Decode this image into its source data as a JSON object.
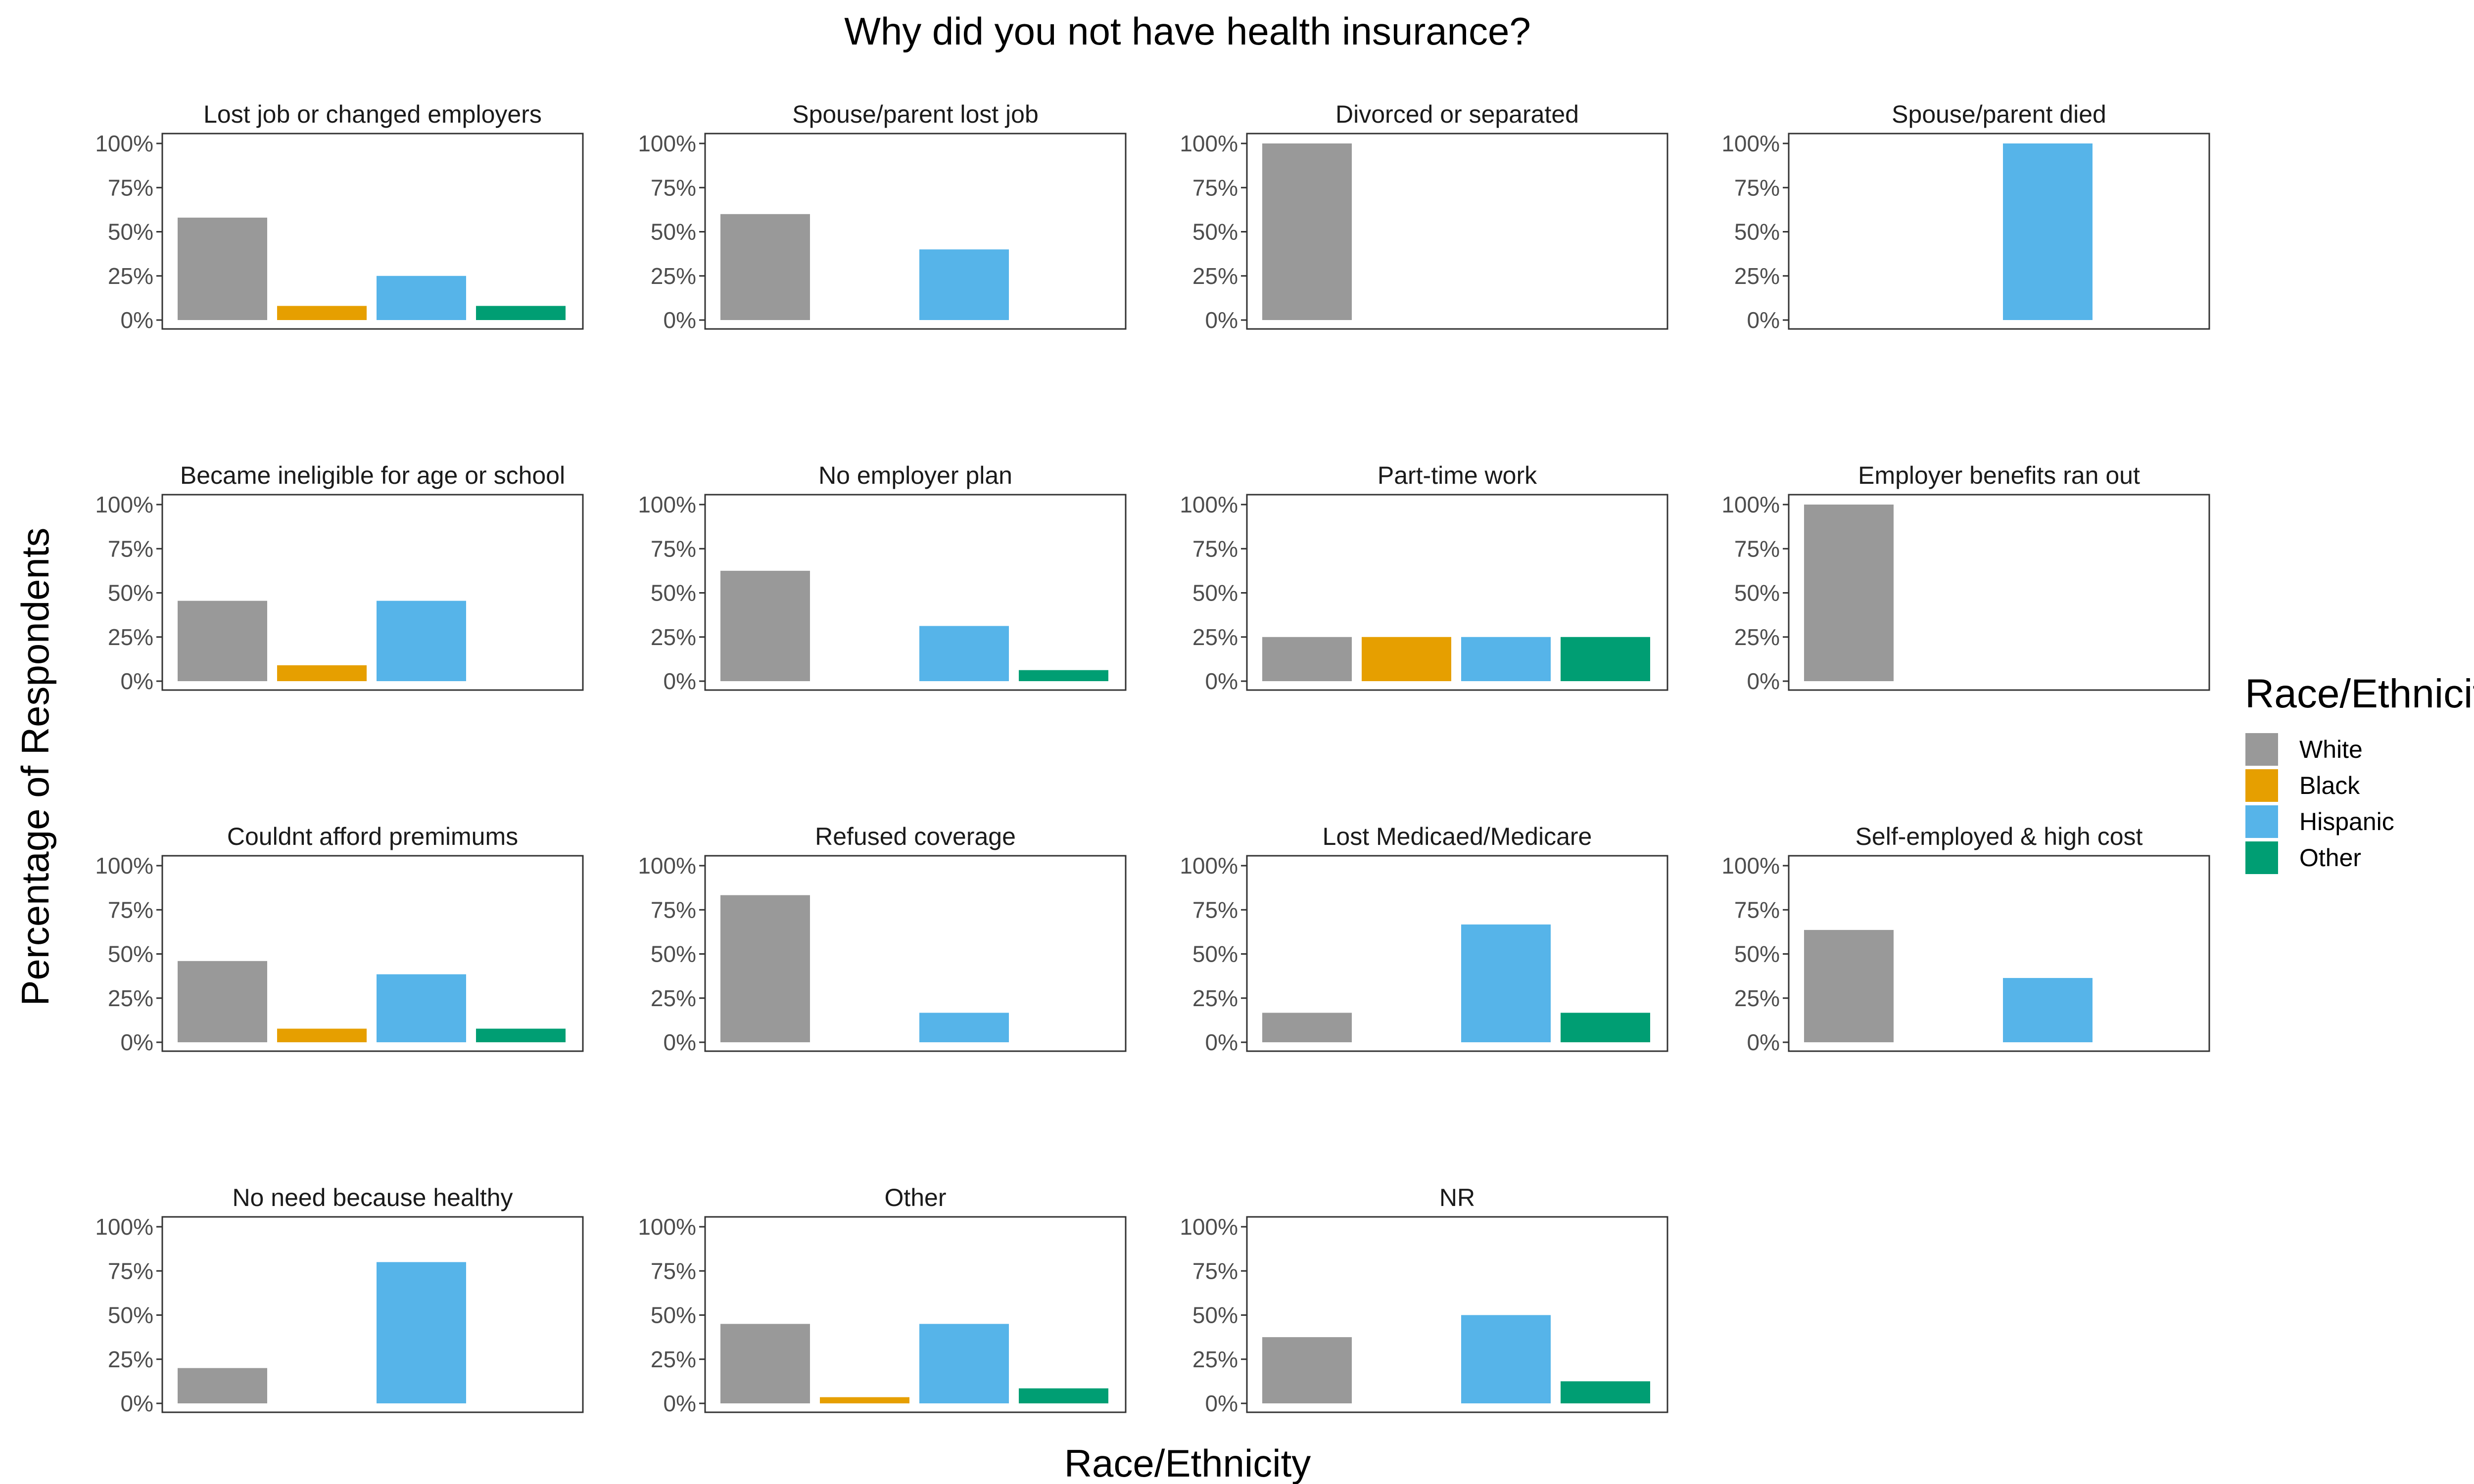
{
  "chart_data": {
    "type": "bar",
    "title": "Why did you not have health insurance?",
    "xlabel": "Race/Ethnicity",
    "ylabel": "Percentage of Respondents",
    "ylim": [
      0,
      1
    ],
    "yticks": [
      {
        "value": 0,
        "label": "0%"
      },
      {
        "value": 0.25,
        "label": "25%"
      },
      {
        "value": 0.5,
        "label": "50%"
      },
      {
        "value": 0.75,
        "label": "75%"
      },
      {
        "value": 1,
        "label": "100%"
      }
    ],
    "grid": false,
    "legend": {
      "title": "Race/Ethnicity",
      "position": "right",
      "entries": [
        {
          "name": "White",
          "color": "#999999"
        },
        {
          "name": "Black",
          "color": "#E69F00"
        },
        {
          "name": "Hispanic",
          "color": "#56B4E9"
        },
        {
          "name": "Other",
          "color": "#009E73"
        }
      ]
    },
    "categories": [
      "White",
      "Black",
      "Hispanic",
      "Other"
    ],
    "panels": [
      {
        "title": "Lost job or changed employers",
        "values": [
          0.58,
          0.08,
          0.25,
          0.08
        ]
      },
      {
        "title": "Spouse/parent lost job",
        "values": [
          0.6,
          0,
          0.4,
          0
        ]
      },
      {
        "title": "Divorced or separated",
        "values": [
          1.0,
          0,
          0,
          0
        ]
      },
      {
        "title": "Spouse/parent died",
        "values": [
          0,
          0,
          1.0,
          0
        ]
      },
      {
        "title": "Became ineligible for age or school",
        "values": [
          0.455,
          0.09,
          0.455,
          0
        ]
      },
      {
        "title": "No employer plan",
        "values": [
          0.625,
          0,
          0.3125,
          0.0625
        ]
      },
      {
        "title": "Part-time work",
        "values": [
          0.25,
          0.25,
          0.25,
          0.25
        ]
      },
      {
        "title": "Employer benefits ran out",
        "values": [
          1.0,
          0,
          0,
          0
        ]
      },
      {
        "title": "Couldnt afford premimums",
        "values": [
          0.46,
          0.077,
          0.385,
          0.077
        ]
      },
      {
        "title": "Refused coverage",
        "values": [
          0.833,
          0,
          0.167,
          0
        ]
      },
      {
        "title": "Lost Medicaed/Medicare",
        "values": [
          0.167,
          0,
          0.667,
          0.167
        ]
      },
      {
        "title": "Self-employed & high cost",
        "values": [
          0.636,
          0,
          0.364,
          0
        ]
      },
      {
        "title": "No need because healthy",
        "values": [
          0.2,
          0,
          0.8,
          0
        ]
      },
      {
        "title": "Other",
        "values": [
          0.45,
          0.035,
          0.45,
          0.085
        ]
      },
      {
        "title": "NR",
        "values": [
          0.375,
          0,
          0.5,
          0.125
        ]
      }
    ]
  }
}
